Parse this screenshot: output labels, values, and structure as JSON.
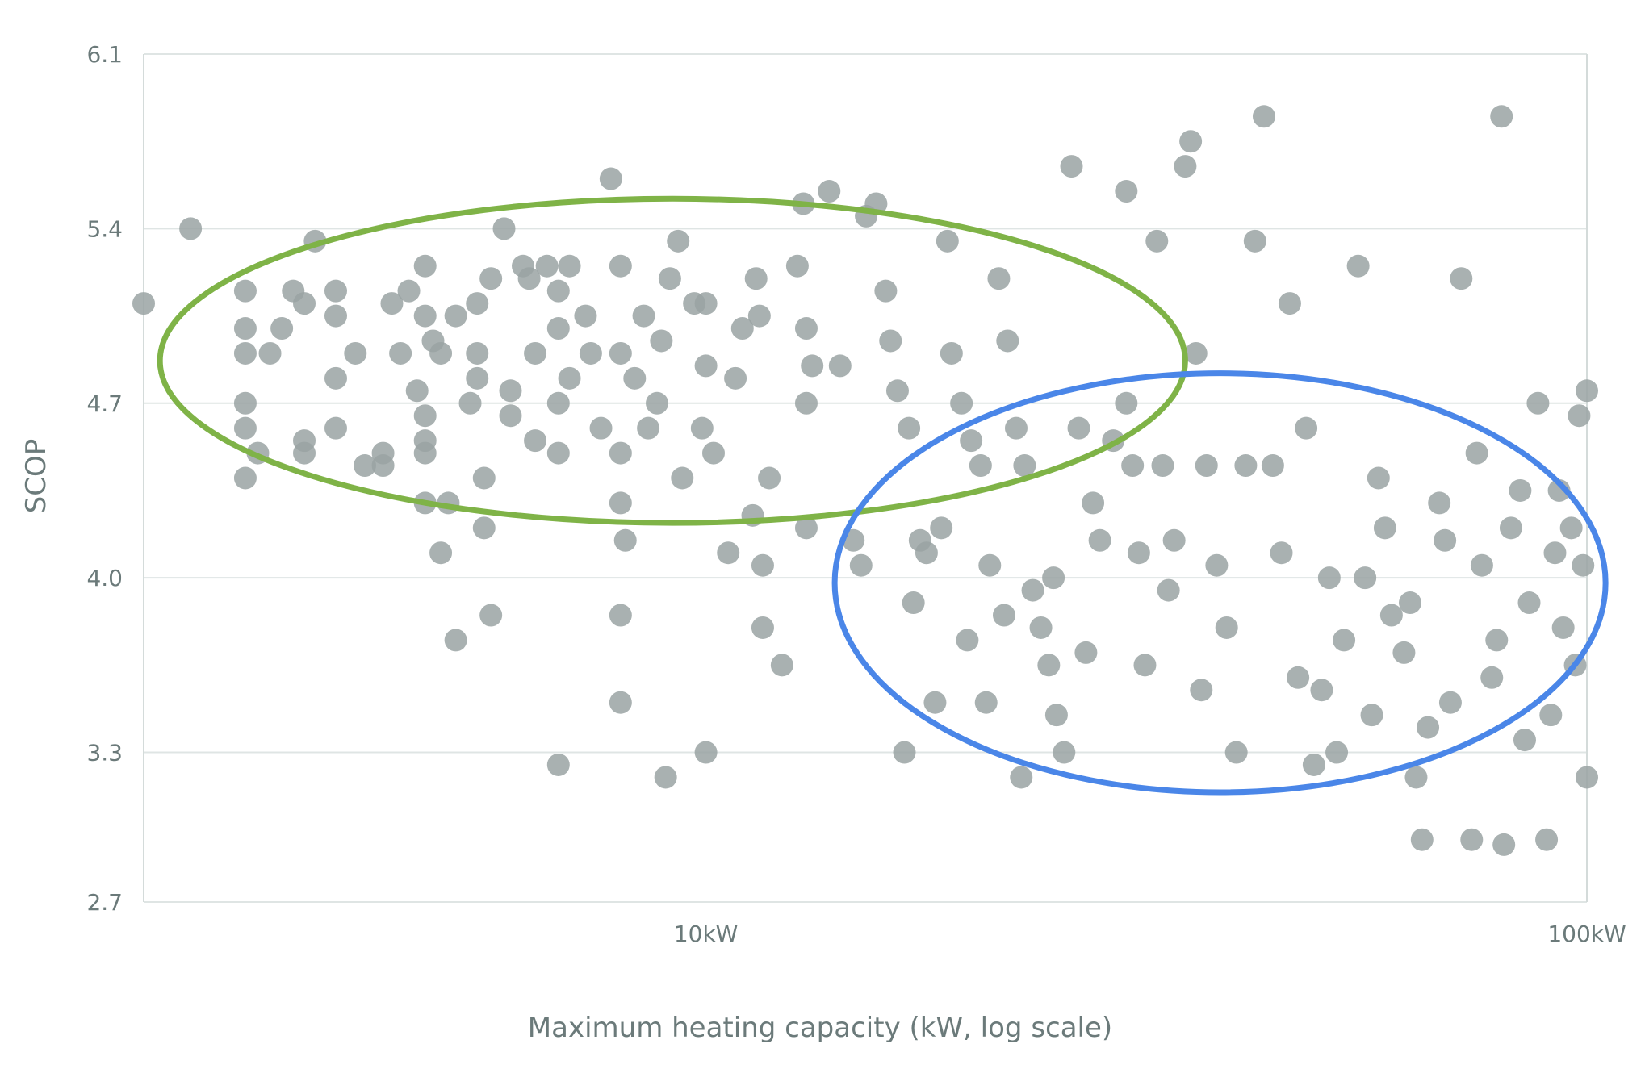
{
  "chart_data": {
    "type": "scatter",
    "title": "",
    "xlabel": "Maximum heating capacity (kW, log scale)",
    "ylabel": "SCOP",
    "x_scale": "log",
    "xlim": [
      2.3,
      100
    ],
    "ylim": [
      2.7,
      6.1
    ],
    "y_ticks": [
      "2.7",
      "3.3",
      "4.0",
      "4.7",
      "5.4",
      "6.1"
    ],
    "x_ticks": [
      {
        "value": 10,
        "label": "10kW"
      },
      {
        "value": 100,
        "label": "100kW"
      }
    ],
    "grid": "horizontal",
    "point_color": "#9aa3a3",
    "annotations": [
      {
        "shape": "ellipse",
        "color": "#7fb347",
        "center": [
          9.5,
          4.88
        ],
        "x_extent": [
          2.4,
          35
        ],
        "y_extent": [
          4.22,
          5.52
        ]
      },
      {
        "shape": "ellipse",
        "color": "#4a86e8",
        "center": [
          38,
          3.98
        ],
        "x_extent": [
          14,
          105
        ],
        "y_extent": [
          3.14,
          4.82
        ]
      }
    ],
    "series": [
      {
        "points": [
          [
            2.3,
            5.1
          ],
          [
            2.6,
            5.4
          ],
          [
            3.0,
            5.15
          ],
          [
            3.0,
            5.0
          ],
          [
            3.0,
            4.9
          ],
          [
            3.0,
            4.7
          ],
          [
            3.0,
            4.6
          ],
          [
            3.0,
            4.4
          ],
          [
            3.1,
            4.5
          ],
          [
            3.2,
            4.9
          ],
          [
            3.3,
            5.0
          ],
          [
            3.4,
            5.15
          ],
          [
            3.5,
            5.1
          ],
          [
            3.5,
            4.55
          ],
          [
            3.5,
            4.5
          ],
          [
            3.6,
            5.35
          ],
          [
            3.8,
            5.15
          ],
          [
            3.8,
            5.05
          ],
          [
            3.8,
            4.8
          ],
          [
            3.8,
            4.6
          ],
          [
            4.0,
            4.9
          ],
          [
            4.1,
            4.45
          ],
          [
            4.3,
            4.45
          ],
          [
            4.3,
            4.5
          ],
          [
            4.4,
            5.1
          ],
          [
            4.5,
            4.9
          ],
          [
            4.6,
            5.15
          ],
          [
            4.7,
            4.75
          ],
          [
            4.8,
            4.65
          ],
          [
            4.8,
            4.55
          ],
          [
            4.8,
            4.5
          ],
          [
            4.8,
            4.3
          ],
          [
            4.8,
            5.25
          ],
          [
            4.8,
            5.05
          ],
          [
            4.9,
            4.95
          ],
          [
            5.0,
            4.9
          ],
          [
            5.0,
            4.1
          ],
          [
            5.1,
            4.3
          ],
          [
            5.2,
            5.05
          ],
          [
            5.2,
            3.75
          ],
          [
            5.4,
            4.7
          ],
          [
            5.5,
            5.1
          ],
          [
            5.5,
            4.9
          ],
          [
            5.5,
            4.8
          ],
          [
            5.6,
            4.4
          ],
          [
            5.6,
            4.2
          ],
          [
            5.7,
            5.2
          ],
          [
            5.7,
            3.85
          ],
          [
            5.9,
            5.4
          ],
          [
            6.0,
            4.75
          ],
          [
            6.0,
            4.65
          ],
          [
            6.2,
            5.25
          ],
          [
            6.3,
            5.2
          ],
          [
            6.4,
            4.55
          ],
          [
            6.4,
            4.9
          ],
          [
            6.6,
            5.25
          ],
          [
            6.8,
            5.15
          ],
          [
            6.8,
            5.0
          ],
          [
            6.8,
            4.7
          ],
          [
            6.8,
            4.5
          ],
          [
            6.8,
            3.25
          ],
          [
            7.0,
            5.25
          ],
          [
            7.0,
            4.8
          ],
          [
            7.3,
            5.05
          ],
          [
            7.4,
            4.9
          ],
          [
            7.6,
            4.6
          ],
          [
            7.8,
            5.6
          ],
          [
            8.0,
            5.25
          ],
          [
            8.0,
            4.9
          ],
          [
            8.0,
            4.5
          ],
          [
            8.0,
            4.3
          ],
          [
            8.0,
            3.85
          ],
          [
            8.0,
            3.5
          ],
          [
            8.1,
            4.15
          ],
          [
            8.3,
            4.8
          ],
          [
            8.5,
            5.05
          ],
          [
            8.6,
            4.6
          ],
          [
            8.8,
            4.7
          ],
          [
            8.9,
            4.95
          ],
          [
            9.0,
            3.2
          ],
          [
            9.1,
            5.2
          ],
          [
            9.3,
            5.35
          ],
          [
            9.4,
            4.4
          ],
          [
            9.7,
            5.1
          ],
          [
            9.9,
            4.6
          ],
          [
            10.0,
            5.1
          ],
          [
            10.0,
            4.85
          ],
          [
            10.0,
            3.3
          ],
          [
            10.2,
            4.5
          ],
          [
            10.6,
            4.1
          ],
          [
            10.8,
            4.8
          ],
          [
            11.0,
            5.0
          ],
          [
            11.3,
            4.25
          ],
          [
            11.4,
            5.2
          ],
          [
            11.5,
            5.05
          ],
          [
            11.6,
            4.05
          ],
          [
            11.6,
            3.8
          ],
          [
            11.8,
            4.4
          ],
          [
            12.2,
            3.65
          ],
          [
            12.7,
            5.25
          ],
          [
            12.9,
            5.5
          ],
          [
            13.0,
            5.0
          ],
          [
            13.0,
            4.7
          ],
          [
            13.0,
            4.2
          ],
          [
            13.2,
            4.85
          ],
          [
            13.8,
            5.55
          ],
          [
            14.2,
            4.85
          ],
          [
            14.7,
            4.15
          ],
          [
            15.0,
            4.05
          ],
          [
            15.2,
            5.45
          ],
          [
            15.6,
            5.5
          ],
          [
            16.0,
            5.15
          ],
          [
            16.2,
            4.95
          ],
          [
            16.5,
            4.75
          ],
          [
            17.0,
            4.6
          ],
          [
            17.5,
            4.15
          ],
          [
            17.8,
            4.1
          ],
          [
            18.5,
            4.2
          ],
          [
            18.8,
            5.35
          ],
          [
            19.0,
            4.9
          ],
          [
            19.5,
            4.7
          ],
          [
            20.0,
            4.55
          ],
          [
            20.5,
            4.45
          ],
          [
            21.0,
            4.05
          ],
          [
            21.5,
            5.2
          ],
          [
            22.0,
            4.95
          ],
          [
            22.5,
            4.6
          ],
          [
            23.0,
            4.45
          ],
          [
            23.5,
            3.95
          ],
          [
            24.0,
            3.8
          ],
          [
            24.5,
            3.65
          ],
          [
            25.0,
            3.45
          ],
          [
            25.5,
            3.3
          ],
          [
            26.0,
            5.65
          ],
          [
            26.5,
            4.6
          ],
          [
            27.5,
            4.3
          ],
          [
            28.0,
            4.15
          ],
          [
            29.0,
            4.55
          ],
          [
            30.0,
            5.55
          ],
          [
            30.0,
            4.7
          ],
          [
            30.5,
            4.45
          ],
          [
            31.0,
            4.1
          ],
          [
            32.5,
            5.35
          ],
          [
            33.0,
            4.45
          ],
          [
            34.0,
            4.15
          ],
          [
            35.0,
            5.65
          ],
          [
            35.5,
            5.75
          ],
          [
            36.0,
            4.9
          ],
          [
            37.0,
            4.45
          ],
          [
            38.0,
            4.05
          ],
          [
            39.0,
            3.8
          ],
          [
            41.0,
            4.45
          ],
          [
            42.0,
            5.35
          ],
          [
            43.0,
            5.85
          ],
          [
            44.0,
            4.45
          ],
          [
            45.0,
            4.1
          ],
          [
            46.0,
            5.1
          ],
          [
            48.0,
            4.6
          ],
          [
            50.0,
            3.55
          ],
          [
            52.0,
            3.3
          ],
          [
            55.0,
            5.25
          ],
          [
            56.0,
            4.0
          ],
          [
            58.0,
            4.4
          ],
          [
            60.0,
            3.85
          ],
          [
            62.0,
            3.7
          ],
          [
            64.0,
            3.2
          ],
          [
            65.0,
            2.95
          ],
          [
            68.0,
            4.3
          ],
          [
            70.0,
            3.5
          ],
          [
            72.0,
            5.2
          ],
          [
            74.0,
            2.95
          ],
          [
            76.0,
            4.05
          ],
          [
            78.0,
            3.6
          ],
          [
            80.0,
            5.85
          ],
          [
            80.5,
            2.93
          ],
          [
            82.0,
            4.2
          ],
          [
            85.0,
            3.35
          ],
          [
            88.0,
            4.7
          ],
          [
            90.0,
            2.95
          ],
          [
            92.0,
            4.1
          ],
          [
            94.0,
            3.8
          ],
          [
            96.0,
            4.2
          ],
          [
            98.0,
            4.65
          ],
          [
            100.0,
            3.2
          ],
          [
            100.0,
            4.75
          ],
          [
            99.0,
            4.05
          ],
          [
            97.0,
            3.65
          ],
          [
            93.0,
            4.35
          ],
          [
            91.0,
            3.45
          ],
          [
            86.0,
            3.9
          ],
          [
            84.0,
            4.35
          ],
          [
            79.0,
            3.75
          ],
          [
            75.0,
            4.5
          ],
          [
            69.0,
            4.15
          ],
          [
            66.0,
            3.4
          ],
          [
            63.0,
            3.9
          ],
          [
            59.0,
            4.2
          ],
          [
            57.0,
            3.45
          ],
          [
            53.0,
            3.75
          ],
          [
            51.0,
            4.0
          ],
          [
            49.0,
            3.25
          ],
          [
            47.0,
            3.6
          ],
          [
            40.0,
            3.3
          ],
          [
            36.5,
            3.55
          ],
          [
            33.5,
            3.95
          ],
          [
            31.5,
            3.65
          ],
          [
            27.0,
            3.7
          ],
          [
            24.8,
            4.0
          ],
          [
            22.8,
            3.2
          ],
          [
            21.8,
            3.85
          ],
          [
            20.8,
            3.5
          ],
          [
            19.8,
            3.75
          ],
          [
            18.2,
            3.5
          ],
          [
            17.2,
            3.9
          ],
          [
            16.8,
            3.3
          ]
        ]
      }
    ]
  }
}
